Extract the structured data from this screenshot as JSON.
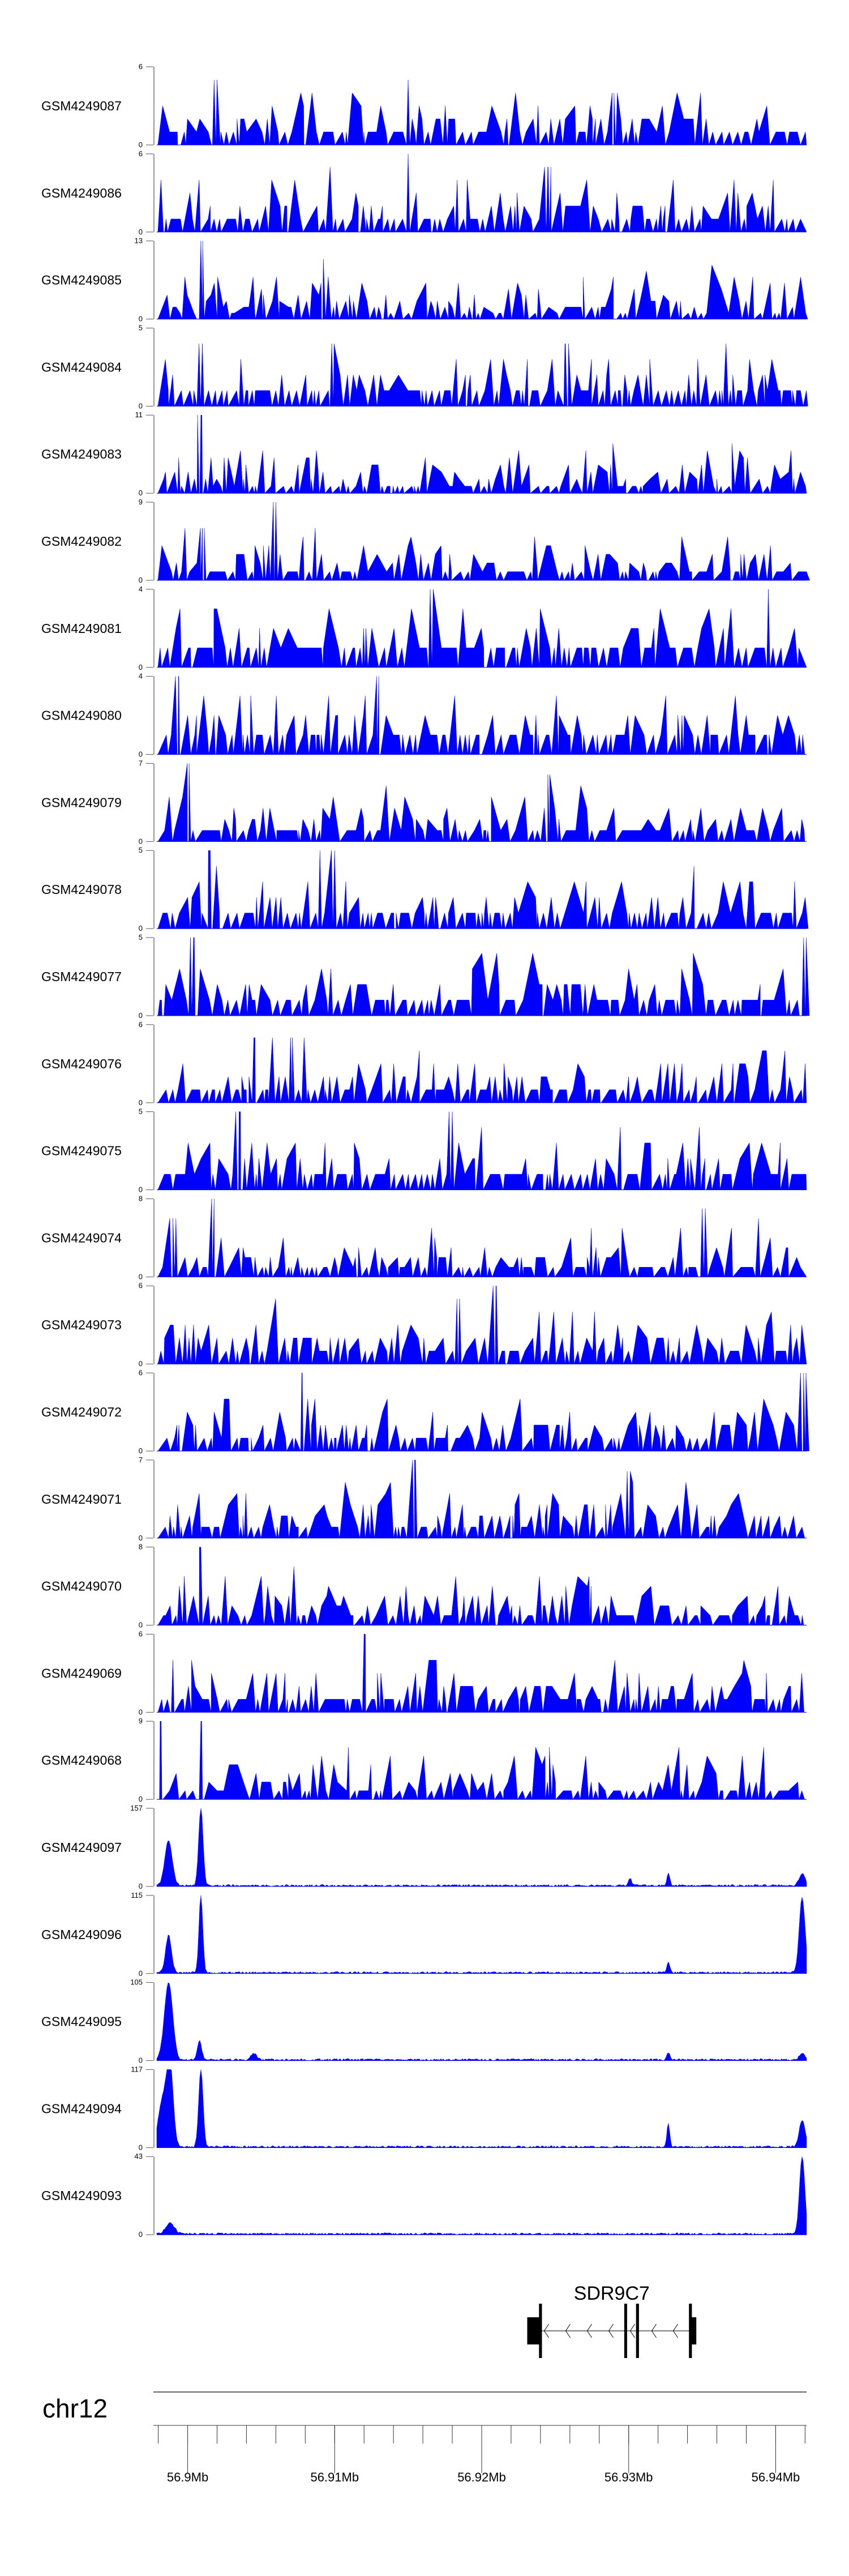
{
  "chart_data": {
    "type": "area",
    "title": "",
    "xlabel": "",
    "ylabel": "",
    "xlim": [
      56.8979,
      56.9421
    ],
    "fill_color": "#0000ff",
    "chromosome": "chr12",
    "xticks": [
      {
        "value": 56.9,
        "label": "56.9Mb"
      },
      {
        "value": 56.91,
        "label": "56.91Mb"
      },
      {
        "value": 56.92,
        "label": "56.92Mb"
      },
      {
        "value": 56.93,
        "label": "56.93Mb"
      },
      {
        "value": 56.94,
        "label": "56.94Mb"
      }
    ],
    "minor_tick_step": 0.002,
    "tracks": [
      {
        "name": "GSM4249087",
        "ymin": "0",
        "ymax": "6",
        "kind": "sparse",
        "seed": 87,
        "peaks": [
          [
            56.9018,
            5
          ],
          [
            56.915,
            5
          ],
          [
            56.929,
            4
          ]
        ]
      },
      {
        "name": "GSM4249086",
        "ymin": "0",
        "ymax": "6",
        "kind": "sparse",
        "seed": 86,
        "peaks": [
          [
            56.915,
            6
          ],
          [
            56.9245,
            5
          ]
        ]
      },
      {
        "name": "GSM4249085",
        "ymin": "0",
        "ymax": "13",
        "kind": "sparse",
        "seed": 85,
        "peaks": [
          [
            56.9009,
            13
          ],
          [
            56.9195,
            4
          ]
        ]
      },
      {
        "name": "GSM4249084",
        "ymin": "0",
        "ymax": "5",
        "kind": "sparse",
        "seed": 84,
        "peaks": [
          [
            56.901,
            4
          ],
          [
            56.9098,
            4
          ],
          [
            56.9257,
            4
          ]
        ]
      },
      {
        "name": "GSM4249083",
        "ymin": "0",
        "ymax": "11",
        "kind": "sparse",
        "seed": 83,
        "peaks": [
          [
            56.9009,
            11
          ]
        ]
      },
      {
        "name": "GSM4249082",
        "ymin": "0",
        "ymax": "9",
        "kind": "sparse",
        "seed": 82,
        "peaks": [
          [
            56.906,
            9
          ],
          [
            56.901,
            6
          ]
        ]
      },
      {
        "name": "GSM4249081",
        "ymin": "0",
        "ymax": "4",
        "kind": "sparse",
        "seed": 81,
        "peaks": [
          [
            56.9165,
            4
          ],
          [
            56.9395,
            4
          ]
        ]
      },
      {
        "name": "GSM4249080",
        "ymin": "0",
        "ymax": "4",
        "kind": "sparse",
        "seed": 80,
        "peaks": [
          [
            56.8994,
            4
          ],
          [
            56.913,
            4
          ]
        ]
      },
      {
        "name": "GSM4249079",
        "ymin": "0",
        "ymax": "7",
        "kind": "sparse",
        "seed": 79,
        "peaks": [
          [
            56.9001,
            7
          ],
          [
            56.9245,
            6
          ]
        ]
      },
      {
        "name": "GSM4249078",
        "ymin": "0",
        "ymax": "5",
        "kind": "sparse",
        "seed": 78,
        "peaks": [
          [
            56.9015,
            5
          ],
          [
            56.909,
            5
          ],
          [
            56.91,
            5
          ]
        ]
      },
      {
        "name": "GSM4249077",
        "ymin": "0",
        "ymax": "5",
        "kind": "sparse",
        "seed": 77,
        "peaks": [
          [
            56.9004,
            5
          ],
          [
            56.9419,
            5
          ]
        ]
      },
      {
        "name": "GSM4249076",
        "ymin": "0",
        "ymax": "6",
        "kind": "sparse",
        "seed": 76,
        "peaks": [
          [
            56.9045,
            5
          ],
          [
            56.907,
            5
          ]
        ]
      },
      {
        "name": "GSM4249075",
        "ymin": "0",
        "ymax": "5",
        "kind": "sparse",
        "seed": 75,
        "peaks": [
          [
            56.9035,
            5
          ],
          [
            56.918,
            5
          ]
        ]
      },
      {
        "name": "GSM4249074",
        "ymin": "0",
        "ymax": "8",
        "kind": "sparse",
        "seed": 74,
        "peaks": [
          [
            56.9018,
            8
          ],
          [
            56.899,
            6
          ],
          [
            56.935,
            7
          ]
        ]
      },
      {
        "name": "GSM4249073",
        "ymin": "0",
        "ymax": "6",
        "kind": "sparse",
        "seed": 73,
        "peaks": [
          [
            56.921,
            6
          ],
          [
            56.9185,
            5
          ]
        ]
      },
      {
        "name": "GSM4249072",
        "ymin": "0",
        "ymax": "6",
        "kind": "sparse",
        "seed": 72,
        "peaks": [
          [
            56.9078,
            6
          ],
          [
            56.9419,
            6
          ]
        ]
      },
      {
        "name": "GSM4249071",
        "ymin": "0",
        "ymax": "7",
        "kind": "sparse",
        "seed": 71,
        "peaks": [
          [
            56.9155,
            7
          ],
          [
            56.9299,
            6
          ]
        ]
      },
      {
        "name": "GSM4249070",
        "ymin": "0",
        "ymax": "8",
        "kind": "sparse",
        "seed": 70,
        "peaks": [
          [
            56.9009,
            8
          ]
        ]
      },
      {
        "name": "GSM4249069",
        "ymin": "0",
        "ymax": "6",
        "kind": "sparse",
        "seed": 69,
        "peaks": [
          [
            56.912,
            6
          ],
          [
            56.899,
            4
          ]
        ]
      },
      {
        "name": "GSM4249068",
        "ymin": "0",
        "ymax": "9",
        "kind": "sparse",
        "seed": 68,
        "peaks": [
          [
            56.8982,
            9
          ],
          [
            56.9009,
            9
          ]
        ]
      },
      {
        "name": "GSM4249097",
        "ymin": "0",
        "ymax": "157",
        "kind": "chip",
        "seed": 97,
        "peaks": [
          [
            56.8987,
            90,
            0.00025
          ],
          [
            56.9009,
            157,
            0.00015
          ],
          [
            56.9301,
            15,
            0.0001
          ],
          [
            56.9327,
            25,
            0.0001
          ],
          [
            56.9418,
            25,
            0.0002
          ]
        ]
      },
      {
        "name": "GSM4249096",
        "ymin": "0",
        "ymax": "115",
        "kind": "chip",
        "seed": 96,
        "peaks": [
          [
            56.8987,
            55,
            0.0002
          ],
          [
            56.9009,
            115,
            0.00013
          ],
          [
            56.9327,
            15,
            0.0001
          ],
          [
            56.9418,
            110,
            0.0002
          ]
        ]
      },
      {
        "name": "GSM4249095",
        "ymin": "0",
        "ymax": "105",
        "kind": "chip",
        "seed": 95,
        "peaks": [
          [
            56.8987,
            105,
            0.00028
          ],
          [
            56.9008,
            25,
            0.00015
          ],
          [
            56.9045,
            8,
            0.0002
          ],
          [
            56.9327,
            10,
            0.0001
          ],
          [
            56.9418,
            8,
            0.0002
          ]
        ]
      },
      {
        "name": "GSM4249094",
        "ymin": "0",
        "ymax": "117",
        "kind": "chip",
        "seed": 94,
        "peaks": [
          [
            56.8983,
            70,
            0.0003
          ],
          [
            56.8988,
            117,
            0.00022
          ],
          [
            56.9009,
            117,
            0.00015
          ],
          [
            56.9327,
            35,
            0.0001
          ],
          [
            56.9418,
            40,
            0.0002
          ]
        ]
      },
      {
        "name": "GSM4249093",
        "ymin": "0",
        "ymax": "43",
        "kind": "chip",
        "seed": 93,
        "peaks": [
          [
            56.9418,
            43,
            0.00018
          ],
          [
            56.8988,
            6,
            0.0003
          ]
        ]
      }
    ],
    "gene": {
      "name": "SDR9C7",
      "strand": "-",
      "start": 56.9231,
      "end": 56.9346,
      "utr": [
        [
          56.9231,
          56.924
        ],
        [
          56.9342,
          56.9346
        ]
      ],
      "exons": [
        [
          56.9239,
          56.9241
        ],
        [
          56.9297,
          56.9298
        ],
        [
          56.9305,
          56.9307
        ],
        [
          56.9341,
          56.9343
        ]
      ]
    }
  }
}
